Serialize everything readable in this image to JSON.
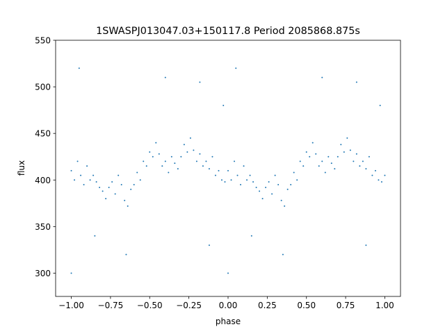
{
  "chart_data": {
    "type": "scatter",
    "title": "1SWASPJ013047.03+150117.8 Period 2085868.875s",
    "xlabel": "phase",
    "ylabel": "flux",
    "xlim": [
      -1.1,
      1.1
    ],
    "ylim": [
      275,
      550
    ],
    "xticks": [
      -1.0,
      -0.75,
      -0.5,
      -0.25,
      0.0,
      0.25,
      0.5,
      0.75,
      1.0
    ],
    "xtick_labels": [
      "−1.00",
      "−0.75",
      "−0.50",
      "−0.25",
      "0.00",
      "0.25",
      "0.50",
      "0.75",
      "1.00"
    ],
    "yticks": [
      300,
      350,
      400,
      450,
      500,
      550
    ],
    "ytick_labels": [
      "300",
      "350",
      "400",
      "450",
      "500",
      "550"
    ],
    "grid": false,
    "marker_color": "#1f77b4",
    "series": [
      {
        "x": [
          0.0,
          0.02,
          0.04,
          0.06,
          0.08,
          0.1,
          0.12,
          0.14,
          0.16,
          0.18,
          0.2,
          0.22,
          0.24,
          0.26,
          0.28,
          0.3,
          0.32,
          0.34,
          0.36,
          0.38,
          0.4,
          0.42,
          0.44,
          0.46,
          0.48,
          0.5,
          0.52,
          0.54,
          0.56,
          0.58,
          0.6,
          0.62,
          0.64,
          0.66,
          0.68,
          0.7,
          0.72,
          0.74,
          0.76,
          0.78,
          0.8,
          0.82,
          0.84,
          0.86,
          0.88,
          0.9,
          0.92,
          0.94,
          0.96,
          0.98,
          1.0,
          0.0,
          0.05,
          0.15,
          0.35,
          0.6,
          0.82,
          0.88,
          0.97,
          -1.0,
          -0.98,
          -0.96,
          -0.94,
          -0.92,
          -0.9,
          -0.88,
          -0.86,
          -0.84,
          -0.82,
          -0.8,
          -0.78,
          -0.76,
          -0.74,
          -0.72,
          -0.7,
          -0.68,
          -0.66,
          -0.64,
          -0.62,
          -0.6,
          -0.58,
          -0.56,
          -0.54,
          -0.52,
          -0.5,
          -0.48,
          -0.46,
          -0.44,
          -0.42,
          -0.4,
          -0.38,
          -0.36,
          -0.34,
          -0.32,
          -0.3,
          -0.28,
          -0.26,
          -0.24,
          -0.22,
          -0.2,
          -0.18,
          -0.16,
          -0.14,
          -0.12,
          -0.1,
          -0.08,
          -0.06,
          -0.04,
          -0.02,
          -1.0,
          -0.95,
          -0.85,
          -0.65,
          -0.4,
          -0.18,
          -0.12,
          -0.03
        ],
        "y": [
          410,
          400,
          420,
          405,
          395,
          415,
          400,
          405,
          398,
          392,
          388,
          380,
          392,
          398,
          385,
          405,
          395,
          378,
          372,
          390,
          395,
          408,
          400,
          420,
          415,
          430,
          425,
          440,
          428,
          415,
          420,
          408,
          425,
          418,
          412,
          425,
          438,
          430,
          445,
          432,
          420,
          428,
          415,
          420,
          412,
          425,
          405,
          410,
          400,
          398,
          405,
          300,
          520,
          340,
          320,
          510,
          505,
          330,
          480,
          410,
          400,
          420,
          405,
          395,
          415,
          400,
          405,
          398,
          392,
          388,
          380,
          392,
          398,
          385,
          405,
          395,
          378,
          372,
          390,
          395,
          408,
          400,
          420,
          415,
          430,
          425,
          440,
          428,
          415,
          420,
          408,
          425,
          418,
          412,
          425,
          438,
          430,
          445,
          432,
          420,
          428,
          415,
          420,
          412,
          425,
          405,
          410,
          400,
          398,
          300,
          520,
          340,
          320,
          510,
          505,
          330,
          480
        ]
      }
    ]
  }
}
